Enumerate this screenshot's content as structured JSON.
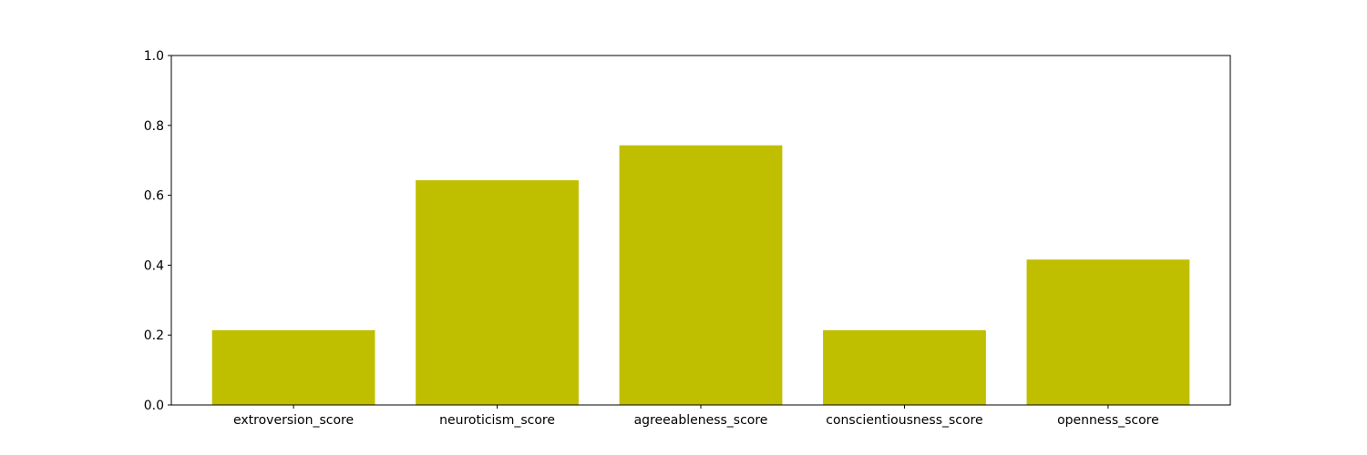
{
  "chart_data": {
    "type": "bar",
    "categories": [
      "extroversion_score",
      "neuroticism_score",
      "agreeableness_score",
      "conscientiousness_score",
      "openness_score"
    ],
    "values": [
      0.214,
      0.643,
      0.743,
      0.214,
      0.416
    ],
    "ylim": [
      0,
      1
    ],
    "yticks": [
      "0.0",
      "0.2",
      "0.4",
      "0.6",
      "0.8",
      "1.0"
    ],
    "title": "",
    "xlabel": "",
    "ylabel": "",
    "grid": false,
    "bar_color": "#bfbf00",
    "axis_color": "#000000"
  }
}
